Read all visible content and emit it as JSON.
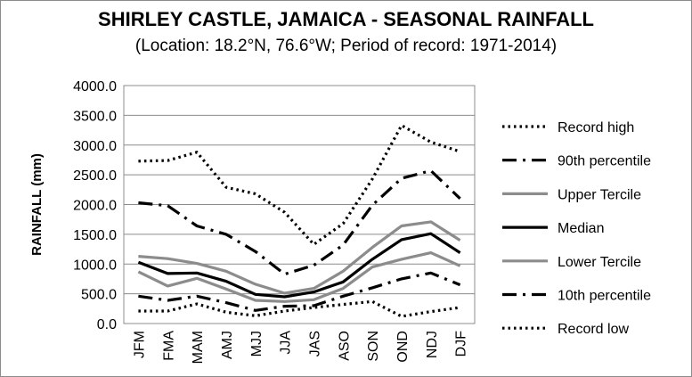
{
  "chart_data": {
    "type": "line",
    "title": "SHIRLEY CASTLE, JAMAICA - SEASONAL RAINFALL",
    "subtitle": "(Location: 18.2°N, 76.6°W; Period of record: 1971-2014)",
    "ylabel": "RAINFALL (mm)",
    "xlabel": "",
    "ylim": [
      0,
      4000
    ],
    "yticks": [
      "0.0",
      "500.0",
      "1000.0",
      "1500.0",
      "2000.0",
      "2500.0",
      "3000.0",
      "3500.0",
      "4000.0"
    ],
    "categories": [
      "JFM",
      "FMA",
      "MAM",
      "AMJ",
      "MJJ",
      "JJA",
      "JAS",
      "ASO",
      "SON",
      "OND",
      "NDJ",
      "DJF"
    ],
    "grid": true,
    "legend_position": "right",
    "series": [
      {
        "name": "Record high",
        "style": "dotted",
        "color": "#000000",
        "values": [
          2730,
          2740,
          2880,
          2290,
          2180,
          1870,
          1330,
          1680,
          2430,
          3330,
          3050,
          2890
        ]
      },
      {
        "name": "90th percentile",
        "style": "dashdot",
        "color": "#000000",
        "values": [
          2030,
          1980,
          1640,
          1500,
          1210,
          830,
          980,
          1320,
          1990,
          2440,
          2570,
          2100
        ]
      },
      {
        "name": "Upper Tercile",
        "style": "solid",
        "color": "#8c8c8c",
        "values": [
          1130,
          1090,
          1010,
          880,
          660,
          510,
          590,
          880,
          1280,
          1640,
          1710,
          1400
        ]
      },
      {
        "name": "Median",
        "style": "solid",
        "color": "#000000",
        "values": [
          1030,
          840,
          850,
          710,
          490,
          450,
          530,
          700,
          1080,
          1410,
          1510,
          1190
        ]
      },
      {
        "name": "Lower Tercile",
        "style": "solid",
        "color": "#8c8c8c",
        "values": [
          870,
          630,
          760,
          580,
          390,
          370,
          400,
          590,
          950,
          1080,
          1190,
          970
        ]
      },
      {
        "name": "10th percentile",
        "style": "dashdot",
        "color": "#000000",
        "values": [
          460,
          390,
          460,
          350,
          220,
          290,
          300,
          460,
          600,
          750,
          850,
          650
        ]
      },
      {
        "name": "Record low",
        "style": "dotted",
        "color": "#000000",
        "values": [
          210,
          210,
          330,
          190,
          130,
          210,
          270,
          320,
          370,
          120,
          200,
          270
        ]
      }
    ]
  }
}
